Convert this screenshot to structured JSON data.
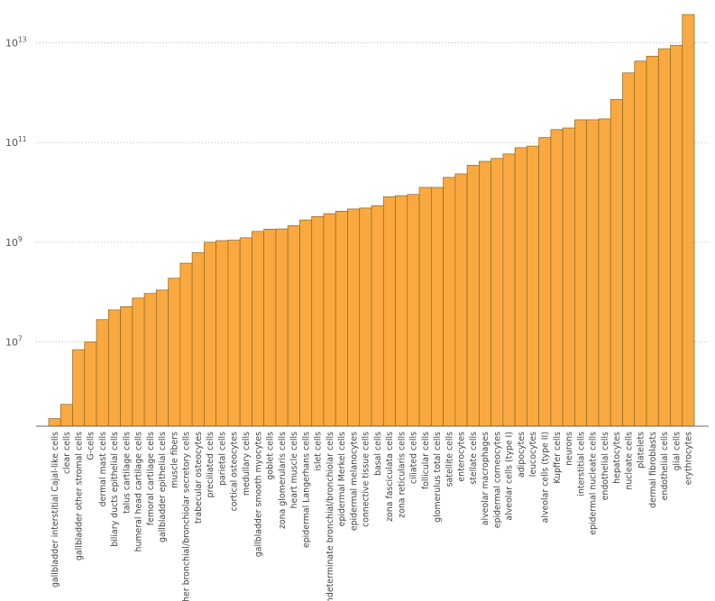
{
  "chart_data": {
    "type": "bar",
    "yscale": "log",
    "ylim": [
      100000,
      100000000000000
    ],
    "y_ticks": [
      {
        "base": "10",
        "exp": "7",
        "value": 10000000
      },
      {
        "base": "10",
        "exp": "9",
        "value": 1000000000
      },
      {
        "base": "10",
        "exp": "11",
        "value": 100000000000
      },
      {
        "base": "10",
        "exp": "13",
        "value": 10000000000000
      }
    ],
    "grid": "horizontal dotted at major ticks",
    "title": "",
    "xlabel": "",
    "ylabel": "",
    "bar_color": "#f9a93f",
    "categories": [
      "gallbladder interstitial Cajal-like cells",
      "clear cells",
      "gallbladder other stromal cells",
      "G-cells",
      "dermal mast cells",
      "biliary ducts epithelial cells",
      "talus cartilage cells",
      "humeral head cartilage cells",
      "femoral cartilage cells",
      "gallbladder epithelial cells",
      "muscle fibers",
      "other bronchial/bronchiolar secretory cells",
      "trabecular osteocytes",
      "preciliated cells",
      "parietal cells",
      "cortical osteocytes",
      "medullary cells",
      "gallbladder smooth myocytes",
      "goblet cells",
      "zona glomerularis cells",
      "heart muscle cells",
      "epidermal Langerhans cells",
      "islet cells",
      "indeterminate bronchial/bronchiolar cells",
      "epidermal Merkel cells",
      "epidermal melanocytes",
      "connective tissue cells",
      "basal cells",
      "zona fasciculata cells",
      "zona reticularis cells",
      "ciliated cells",
      "follicular cells",
      "glomerulus total cells",
      "satellite cells",
      "enterocytes",
      "stellate cells",
      "alveolar macrophages",
      "epidermal corneocytes",
      "alveolar cells (type I)",
      "adipocytes",
      "leucocytes",
      "alveolar cells (type II)",
      "Kupffer cells",
      "neurons",
      "interstitial cells",
      "epidermal nucleate cells",
      "endothelial cells",
      "hepatocytes",
      "nucleate cells",
      "platelets",
      "dermal fibroblasts",
      "endothelial cells",
      "glial cells",
      "erythrocytes"
    ],
    "values": [
      290000,
      560000,
      7000000,
      10000000,
      28000000,
      44000000,
      51000000,
      76000000,
      94000000,
      110000000,
      190000000,
      380000000,
      620000000,
      1000000000,
      1080000000,
      1100000000,
      1230000000,
      1650000000,
      1830000000,
      1850000000,
      2150000000,
      2800000000,
      3280000000,
      3750000000,
      4200000000,
      4650000000,
      4850000000,
      5430000000,
      8200000000,
      8600000000,
      9100000000,
      12600000000,
      12600000000,
      20000000000,
      23500000000,
      35000000000,
      42000000000,
      48000000000,
      59000000000,
      79000000000,
      85000000000,
      126000000000,
      182000000000,
      196000000000,
      286000000000,
      286000000000,
      298000000000,
      730000000000,
      2500000000000,
      4300000000000,
      5400000000000,
      7600000000000,
      8900000000000,
      37000000000000
    ]
  }
}
